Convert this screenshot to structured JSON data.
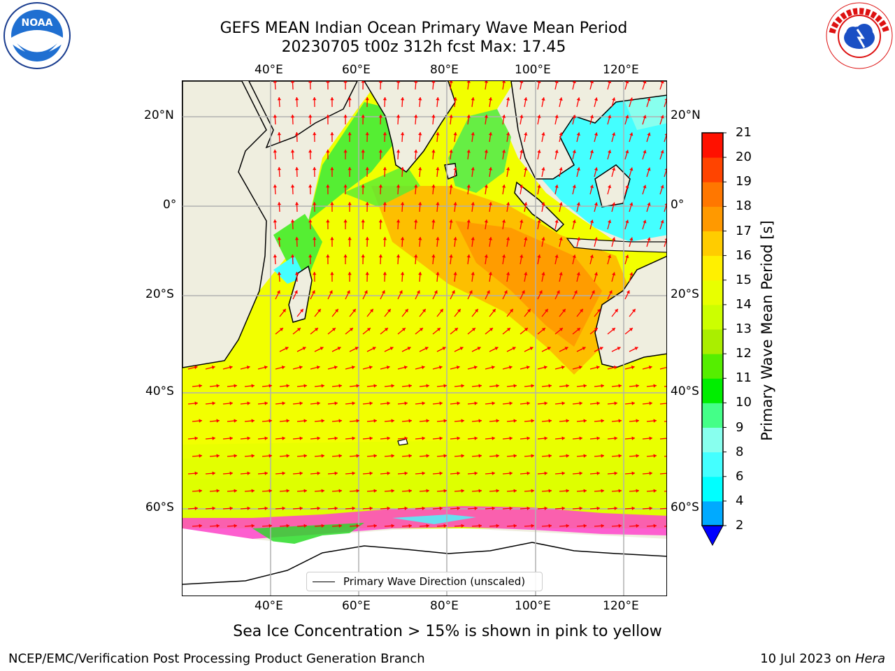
{
  "header": {
    "title_line1": "GEFS MEAN Indian Ocean Primary Wave Mean Period",
    "title_line2": "20230705 t00z 312h fcst   Max: 17.45"
  },
  "logos": {
    "left": {
      "name": "noaa-logo",
      "text": "NOAA"
    },
    "right": {
      "name": "nws-logo",
      "text": "NATIONAL WEATHER SERVICE"
    }
  },
  "map": {
    "lon_ticks": [
      "40°E",
      "60°E",
      "80°E",
      "100°E",
      "120°E"
    ],
    "lat_ticks_left": [
      "20°N",
      "0°",
      "20°S",
      "40°S",
      "60°S"
    ],
    "lat_ticks_right": [
      "20°N",
      "0°",
      "20°S",
      "40°S",
      "60°S"
    ],
    "legend_label": "Primary Wave Direction (unscaled)",
    "colors": {
      "land": "#efeedf",
      "arrow": "#ff0000",
      "sea_ice": "#ff44cc"
    }
  },
  "colorbar": {
    "label": "Primary Wave Mean Period [s]",
    "tick_labels": [
      "2",
      "4",
      "6",
      "8",
      "9",
      "10",
      "11",
      "12",
      "13",
      "14",
      "15",
      "16",
      "17",
      "18",
      "19",
      "20",
      "21"
    ],
    "colors": [
      "#0055ff",
      "#00aaff",
      "#00ffff",
      "#44ffff",
      "#88ffee",
      "#44ff88",
      "#00ee00",
      "#55ee00",
      "#aaee00",
      "#ccff00",
      "#e8ff00",
      "#fff000",
      "#ffcc00",
      "#ff9900",
      "#ff7700",
      "#ff4400",
      "#ff1100",
      "#ff0000"
    ],
    "extend_color": "#0000ff"
  },
  "caption": "Sea Ice Concentration > 15% is shown in pink to yellow",
  "footer": {
    "left": "NCEP/EMC/Verification Post Processing Product Generation Branch",
    "right_prefix": "10 Jul 2023 on ",
    "right_italic": "Hera"
  }
}
